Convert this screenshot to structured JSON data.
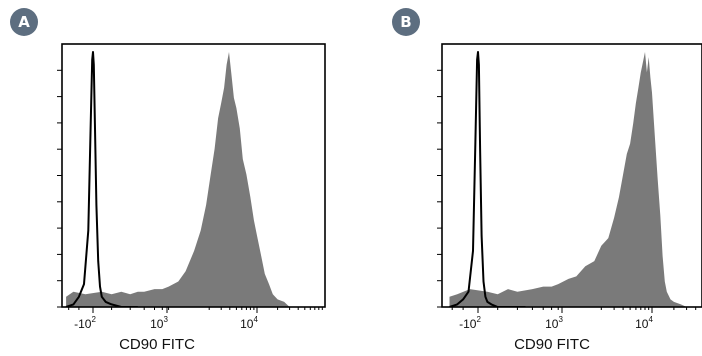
{
  "chart_data": [
    {
      "panel": "A",
      "type": "area",
      "xlabel": "CD90 FITC",
      "x_scale": "biexponential",
      "x_ticks": [
        {
          "base": "-10",
          "exp": "2",
          "value": -100
        },
        {
          "base": "10",
          "exp": "3",
          "value": 1000
        },
        {
          "base": "10",
          "exp": "4",
          "value": 10000
        }
      ],
      "y_ticks_count": 10,
      "series": [
        {
          "role": "sample",
          "color": "#7a7a7a",
          "x": [
            -330,
            -250,
            -150,
            -50,
            0,
            50,
            100,
            150,
            200,
            300,
            400,
            500,
            700,
            900,
            1200,
            1500,
            1800,
            2100,
            2400,
            2700,
            3000,
            3300,
            3600,
            3900,
            4200,
            4600,
            5000,
            5600,
            6200,
            7000,
            8000,
            9000,
            10000,
            11500,
            13000,
            15000,
            17000,
            20000,
            25000,
            30000
          ],
          "values": [
            0.04,
            0.06,
            0.05,
            0.06,
            0.05,
            0.06,
            0.05,
            0.06,
            0.06,
            0.07,
            0.07,
            0.08,
            0.1,
            0.14,
            0.22,
            0.3,
            0.4,
            0.52,
            0.62,
            0.74,
            0.8,
            0.86,
            0.95,
            1.0,
            0.92,
            0.82,
            0.78,
            0.7,
            0.58,
            0.52,
            0.43,
            0.34,
            0.28,
            0.2,
            0.13,
            0.09,
            0.05,
            0.03,
            0.02,
            0.0
          ]
        },
        {
          "role": "control",
          "color": "#000000",
          "x": [
            -330,
            -250,
            -200,
            -160,
            -130,
            -115,
            -105,
            -100,
            -95,
            -88,
            -80,
            -70,
            -60,
            -50,
            -30,
            0,
            50,
            100,
            150
          ],
          "values": [
            0.0,
            0.01,
            0.04,
            0.09,
            0.3,
            0.7,
            0.97,
            1.0,
            0.95,
            0.7,
            0.4,
            0.18,
            0.08,
            0.04,
            0.02,
            0.01,
            0.0,
            0.0,
            0.0
          ]
        }
      ]
    },
    {
      "panel": "B",
      "type": "area",
      "xlabel": "CD90 FITC",
      "x_scale": "biexponential",
      "x_ticks": [
        {
          "base": "-10",
          "exp": "2",
          "value": -100
        },
        {
          "base": "10",
          "exp": "3",
          "value": 1000
        },
        {
          "base": "10",
          "exp": "4",
          "value": 10000
        }
      ],
      "y_ticks_count": 10,
      "series": [
        {
          "role": "sample",
          "color": "#7a7a7a",
          "x": [
            -330,
            -250,
            -150,
            -50,
            0,
            50,
            100,
            200,
            300,
            400,
            500,
            700,
            900,
            1200,
            1600,
            2000,
            2500,
            3000,
            3500,
            4000,
            4500,
            5000,
            5500,
            6000,
            6500,
            7000,
            7500,
            8000,
            8500,
            9000,
            9500,
            10000,
            11000,
            12000,
            13000,
            14000,
            15000,
            16000,
            18000,
            20000,
            25000,
            30000
          ],
          "values": [
            0.04,
            0.05,
            0.07,
            0.06,
            0.05,
            0.07,
            0.06,
            0.07,
            0.08,
            0.08,
            0.09,
            0.11,
            0.12,
            0.16,
            0.18,
            0.24,
            0.27,
            0.35,
            0.43,
            0.52,
            0.6,
            0.64,
            0.72,
            0.8,
            0.86,
            0.92,
            0.96,
            1.0,
            0.92,
            0.98,
            0.9,
            0.84,
            0.66,
            0.5,
            0.36,
            0.2,
            0.1,
            0.06,
            0.03,
            0.02,
            0.01,
            0.0
          ]
        },
        {
          "role": "control",
          "color": "#000000",
          "x": [
            -330,
            -250,
            -200,
            -160,
            -130,
            -115,
            -105,
            -100,
            -95,
            -88,
            -80,
            -70,
            -60,
            -50,
            -30,
            0,
            50,
            100,
            150
          ],
          "values": [
            0.0,
            0.01,
            0.03,
            0.06,
            0.22,
            0.65,
            0.97,
            1.0,
            0.95,
            0.62,
            0.28,
            0.1,
            0.04,
            0.02,
            0.01,
            0.0,
            0.0,
            0.0,
            0.0
          ]
        }
      ]
    }
  ]
}
